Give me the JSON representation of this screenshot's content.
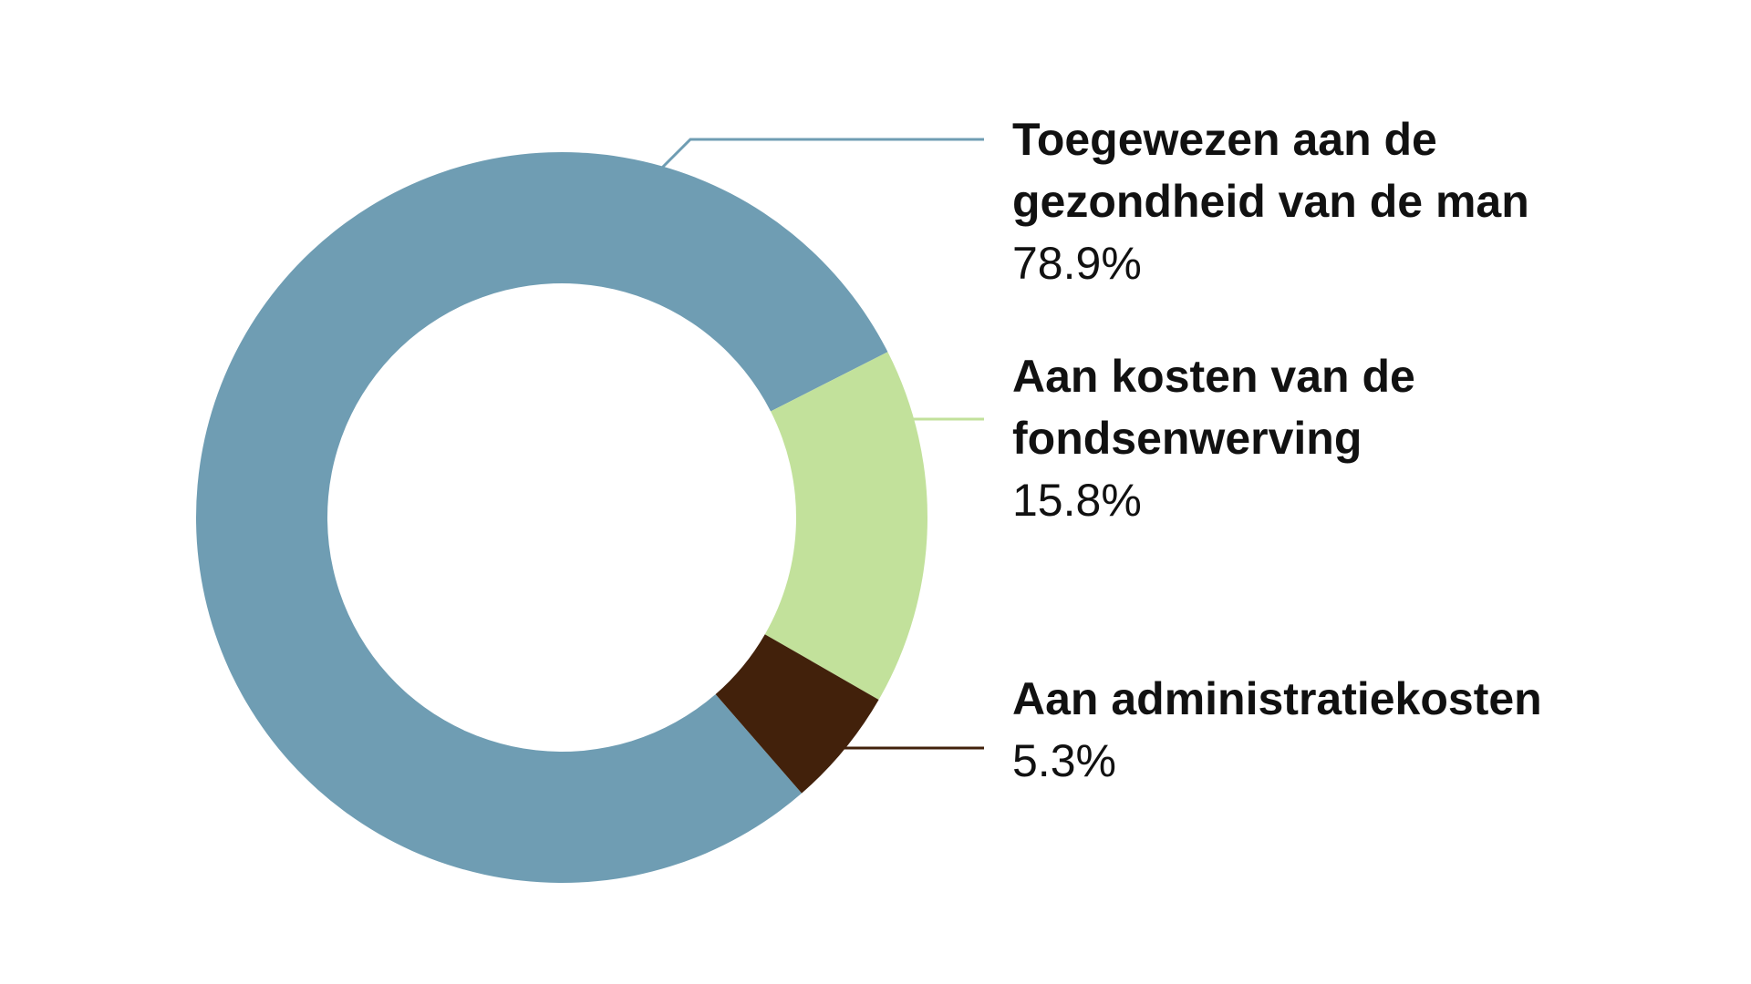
{
  "chart_data": {
    "type": "donut",
    "categories": [
      "Toegewezen aan de gezondheid van de man",
      "Aan kosten van de fondsenwerving",
      "Aan administratiekosten"
    ],
    "values": [
      78.9,
      15.8,
      5.3
    ],
    "value_labels": [
      "78.9%",
      "15.8%",
      "5.3%"
    ],
    "colors": [
      "#6f9db3",
      "#c2e19b",
      "#42210b"
    ]
  }
}
